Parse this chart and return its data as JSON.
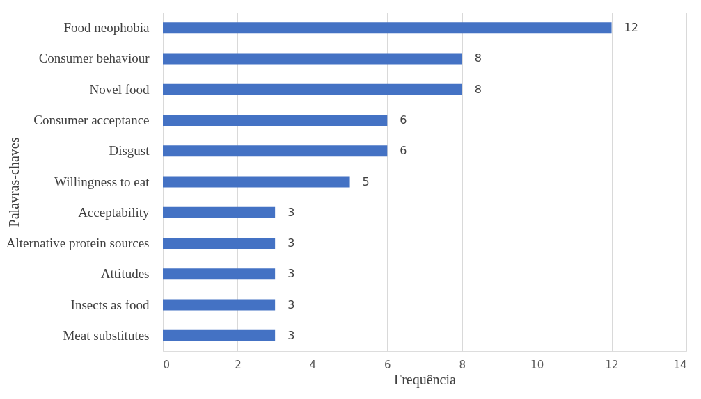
{
  "chart_data": {
    "type": "bar",
    "orientation": "horizontal",
    "categories": [
      "Food neophobia",
      "Consumer behaviour",
      "Novel food",
      "Consumer acceptance",
      "Disgust",
      "Willingness to eat",
      "Acceptability",
      "Alternative protein sources",
      "Attitudes",
      "Insects as food",
      "Meat substitutes"
    ],
    "values": [
      12,
      8,
      8,
      6,
      6,
      5,
      3,
      3,
      3,
      3,
      3
    ],
    "color": "#4472c4",
    "xlim": [
      0,
      14
    ],
    "xticks": [
      0,
      2,
      4,
      6,
      8,
      10,
      12,
      14
    ],
    "xlabel": "Frequência",
    "ylabel": "Palavras-chaves",
    "grid": "x",
    "data_labels": true
  }
}
